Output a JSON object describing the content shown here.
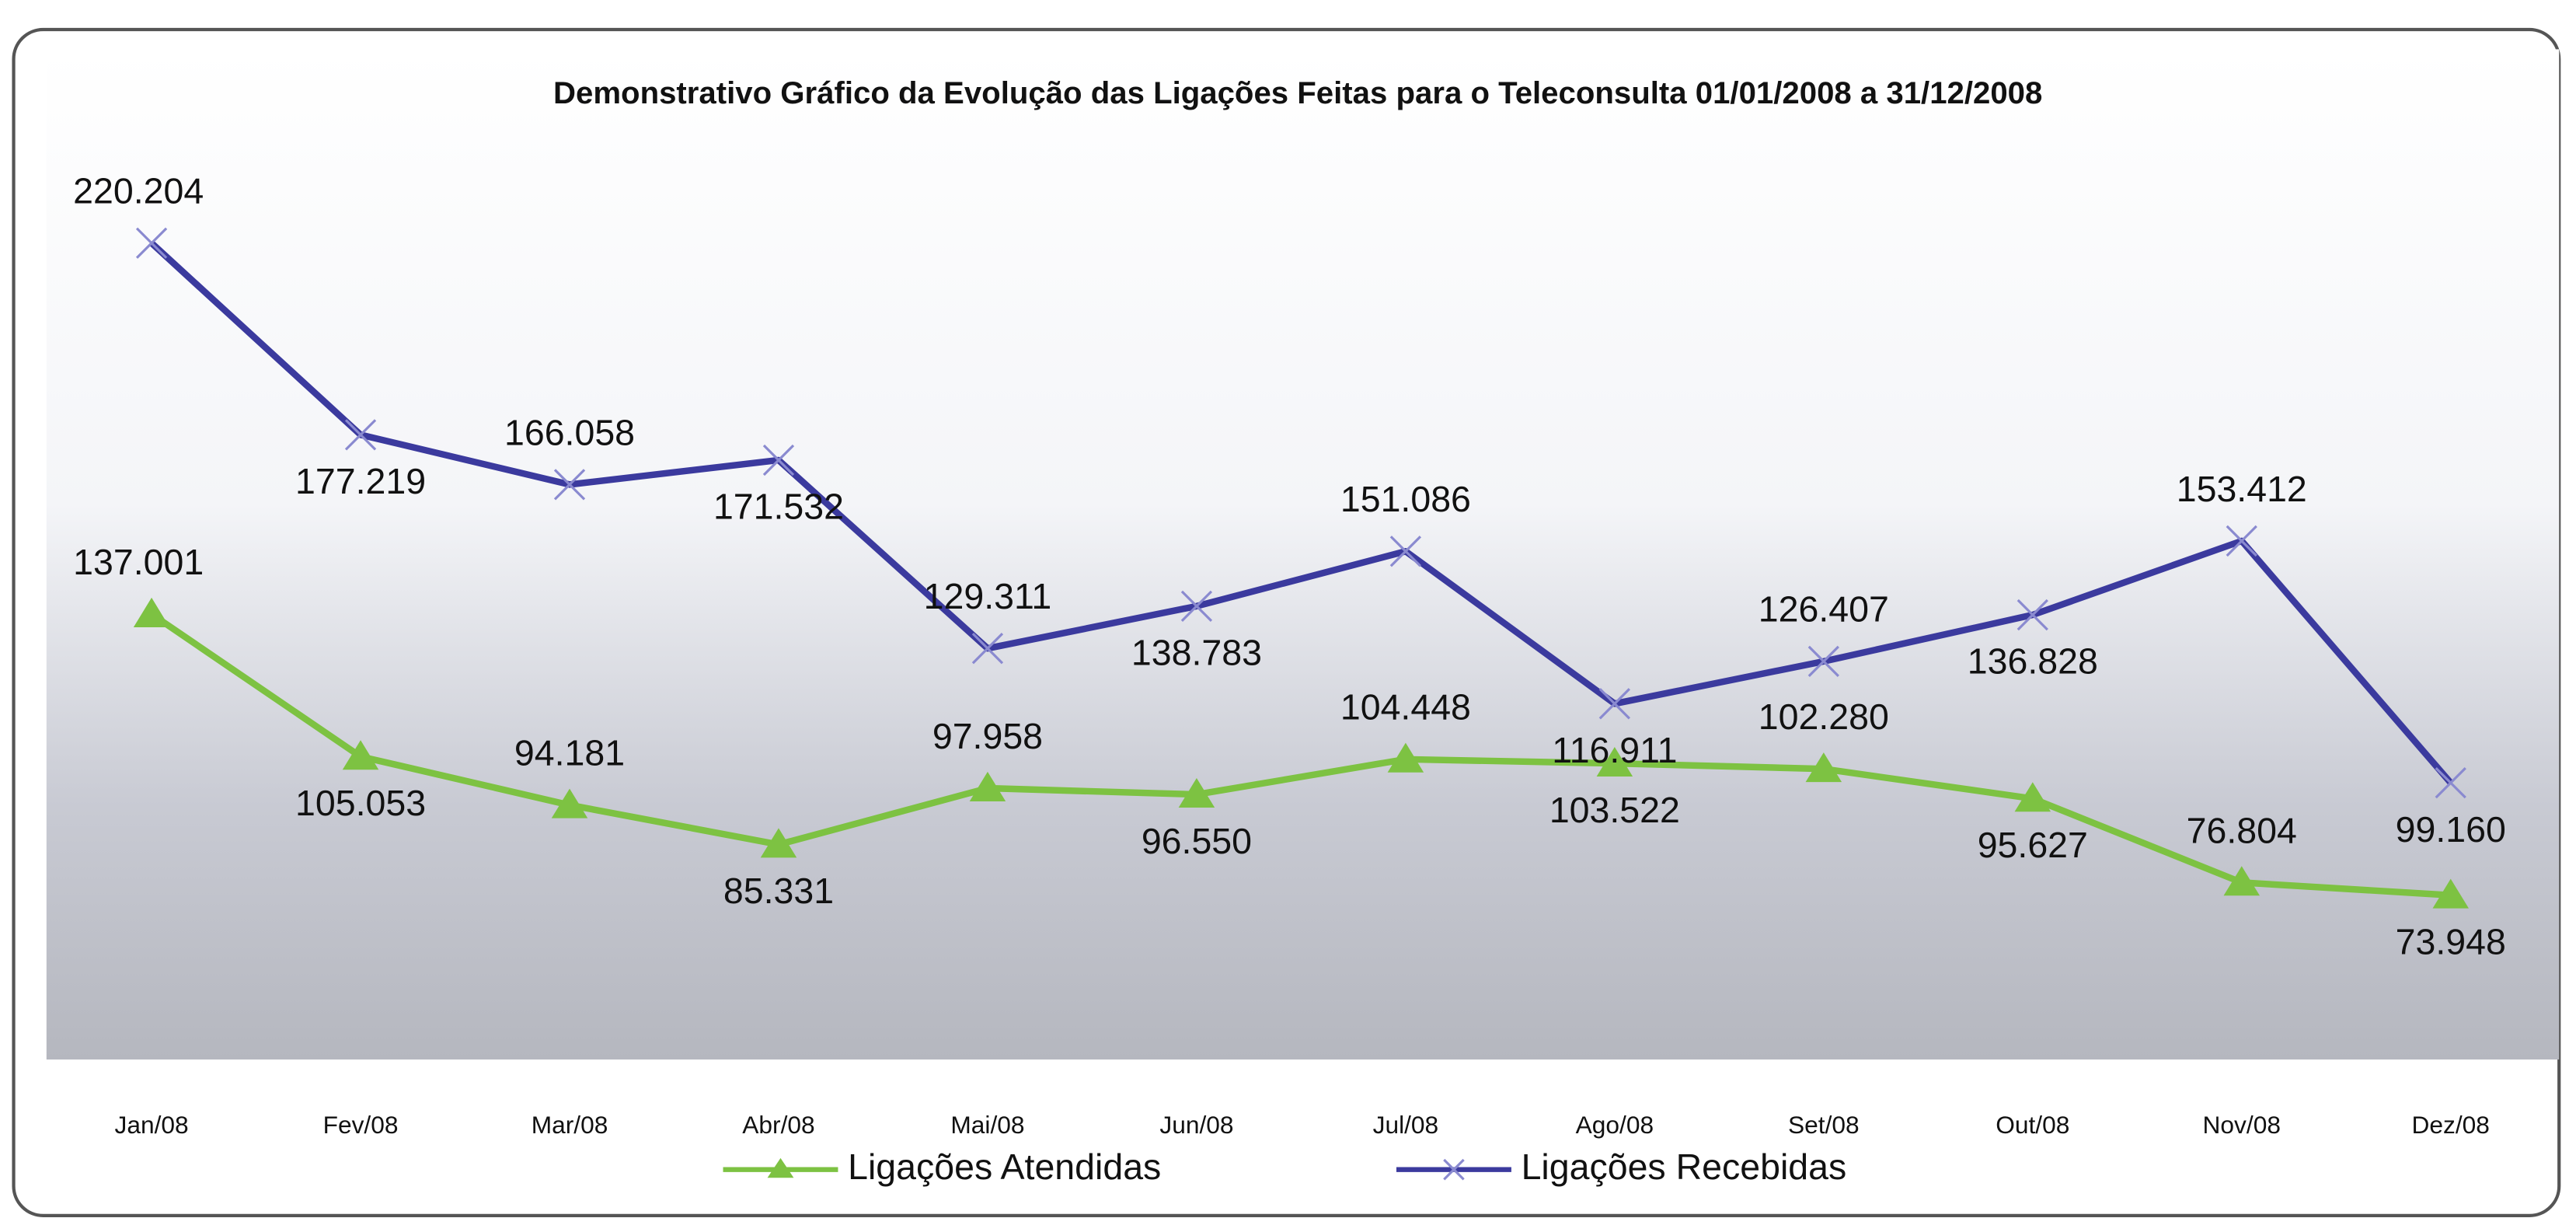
{
  "chart_data": {
    "type": "line",
    "title": "Demonstrativo Gráfico da Evolução das Ligações Feitas para o Teleconsulta 01/01/2008 a 31/12/2008",
    "categories": [
      "Jan/08",
      "Fev/08",
      "Mar/08",
      "Abr/08",
      "Mai/08",
      "Jun/08",
      "Jul/08",
      "Ago/08",
      "Set/08",
      "Out/08",
      "Nov/08",
      "Dez/08"
    ],
    "series": [
      {
        "name": "Ligações Atendidas",
        "color": "#7dc242",
        "marker": "triangle",
        "values": [
          137001,
          105053,
          94181,
          85331,
          97958,
          96550,
          104448,
          103522,
          102280,
          95627,
          76804,
          73948
        ],
        "value_labels": [
          "137.001",
          "105.053",
          "94.181",
          "85.331",
          "97.958",
          "96.550",
          "104.448",
          "103.522",
          "102.280",
          "95.627",
          "76.804",
          "73.948"
        ]
      },
      {
        "name": "Ligações Recebidas",
        "color": "#3b3a9e",
        "marker": "x",
        "values": [
          220204,
          177219,
          166058,
          171532,
          129311,
          138783,
          151086,
          116911,
          126407,
          136828,
          153412,
          99160
        ],
        "value_labels": [
          "220.204",
          "177.219",
          "166.058",
          "171.532",
          "129.311",
          "138.783",
          "151.086",
          "116.911",
          "126.407",
          "136.828",
          "153.412",
          "99.160"
        ]
      }
    ],
    "legend": "bottom"
  }
}
